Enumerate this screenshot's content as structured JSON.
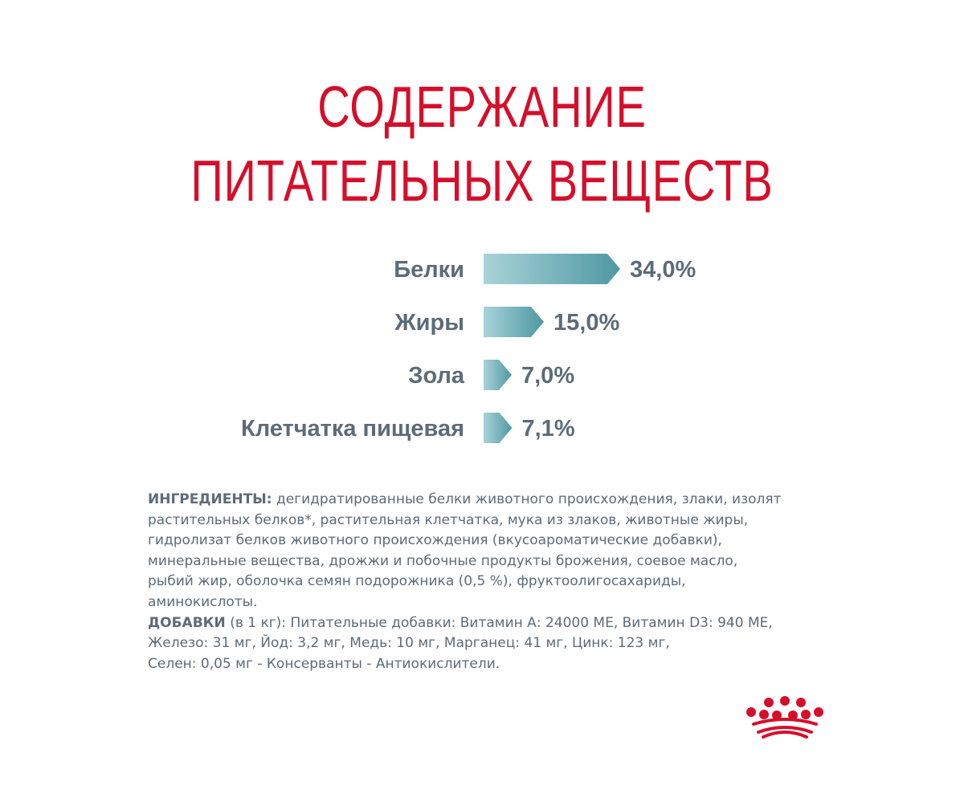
{
  "title": {
    "line1": "СОДЕРЖАНИЕ",
    "line2": "ПИТАТЕЛЬНЫХ ВЕЩЕСТВ"
  },
  "chart_data": {
    "type": "bar",
    "orientation": "horizontal",
    "categories": [
      "Белки",
      "Жиры",
      "Зола",
      "Клетчатка пищевая"
    ],
    "values": [
      34.0,
      15.0,
      7.0,
      7.1
    ],
    "value_labels": [
      "34,0%",
      "15,0%",
      "7,0%",
      "7,1%"
    ],
    "unit": "%",
    "xlim": [
      0,
      34
    ],
    "grid": false,
    "colors": {
      "bar_start": "#a9d3d8",
      "bar_end": "#4f98a2",
      "text": "#5d6b78"
    }
  },
  "ingredients": {
    "heading": "ИНГРЕДИЕНТЫ:",
    "text": " дегидратированные белки животного происхождения, злаки, изолят\nрастительных белков*, растительная клетчатка, мука из злаков, животные жиры,\nгидролизат белков животного происхождения (вкусоароматические добавки),\nминеральные вещества, дрожжи и побочные продукты брожения, соевое масло,\nрыбий жир, оболочка семян подорожника (0,5 %), фруктоолигосахариды,\nаминокислоты.",
    "additives_heading": "ДОБАВКИ",
    "additives_text": " (в 1 кг): Питательные добавки: Витамин А: 24000 МЕ, Витамин D3: 940 МЕ,\nЖелезо: 31 мг, Йод: 3,2 мг, Медь: 10 мг, Марганец: 41 мг, Цинк: 123 мг,\nСелен: 0,05 мг - Консерванты - Антиокислители."
  },
  "brand": {
    "logo_icon": "crown-icon",
    "color": "#d50f2b"
  }
}
